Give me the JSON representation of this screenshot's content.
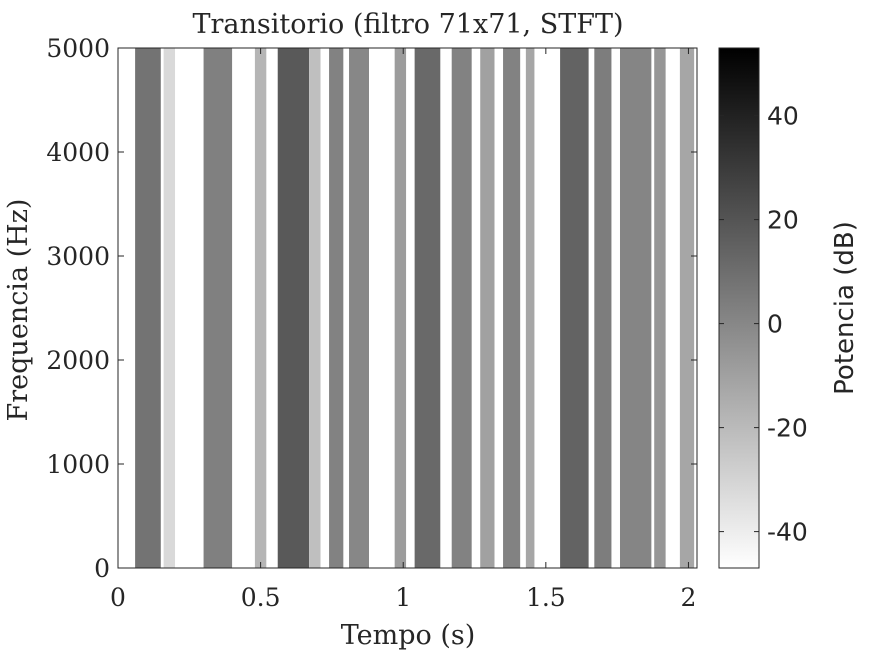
{
  "chart_data": {
    "type": "heatmap",
    "title": "Transitorio (filtro 71x71, STFT)",
    "xlabel": "Tempo (s)",
    "ylabel": "Frequencia (Hz)",
    "xlim": [
      0,
      2.03
    ],
    "ylim": [
      0,
      5000
    ],
    "x_ticks": [
      0,
      0.5,
      1,
      1.5,
      2
    ],
    "x_tick_labels": [
      "0",
      "0.5",
      "1",
      "1.5",
      "2"
    ],
    "y_ticks": [
      0,
      1000,
      2000,
      3000,
      4000,
      5000
    ],
    "y_tick_labels": [
      "0",
      "1000",
      "2000",
      "3000",
      "4000",
      "5000"
    ],
    "colormap": "gray-reversed",
    "colorbar": {
      "label": "Potencia (dB)",
      "range": [
        -47,
        53
      ],
      "ticks": [
        -40,
        -20,
        0,
        20,
        40
      ],
      "tick_labels": [
        "-40",
        "-20",
        "0",
        "20",
        "40"
      ]
    },
    "bands": [
      {
        "t_start": 0.06,
        "t_end": 0.15,
        "power_db": 8
      },
      {
        "t_start": 0.16,
        "t_end": 0.2,
        "power_db": -32
      },
      {
        "t_start": 0.3,
        "t_end": 0.4,
        "power_db": 3
      },
      {
        "t_start": 0.48,
        "t_end": 0.52,
        "power_db": -18
      },
      {
        "t_start": 0.56,
        "t_end": 0.67,
        "power_db": 18
      },
      {
        "t_start": 0.67,
        "t_end": 0.71,
        "power_db": -22
      },
      {
        "t_start": 0.74,
        "t_end": 0.79,
        "power_db": 2
      },
      {
        "t_start": 0.81,
        "t_end": 0.88,
        "power_db": 0
      },
      {
        "t_start": 0.97,
        "t_end": 1.01,
        "power_db": -8
      },
      {
        "t_start": 1.04,
        "t_end": 1.13,
        "power_db": 12
      },
      {
        "t_start": 1.17,
        "t_end": 1.24,
        "power_db": 2
      },
      {
        "t_start": 1.27,
        "t_end": 1.32,
        "power_db": -10
      },
      {
        "t_start": 1.35,
        "t_end": 1.41,
        "power_db": 2
      },
      {
        "t_start": 1.43,
        "t_end": 1.46,
        "power_db": -12
      },
      {
        "t_start": 1.55,
        "t_end": 1.65,
        "power_db": 14
      },
      {
        "t_start": 1.67,
        "t_end": 1.73,
        "power_db": 4
      },
      {
        "t_start": 1.76,
        "t_end": 1.87,
        "power_db": 1
      },
      {
        "t_start": 1.88,
        "t_end": 1.92,
        "power_db": -6
      },
      {
        "t_start": 1.97,
        "t_end": 2.02,
        "power_db": -12
      }
    ]
  }
}
